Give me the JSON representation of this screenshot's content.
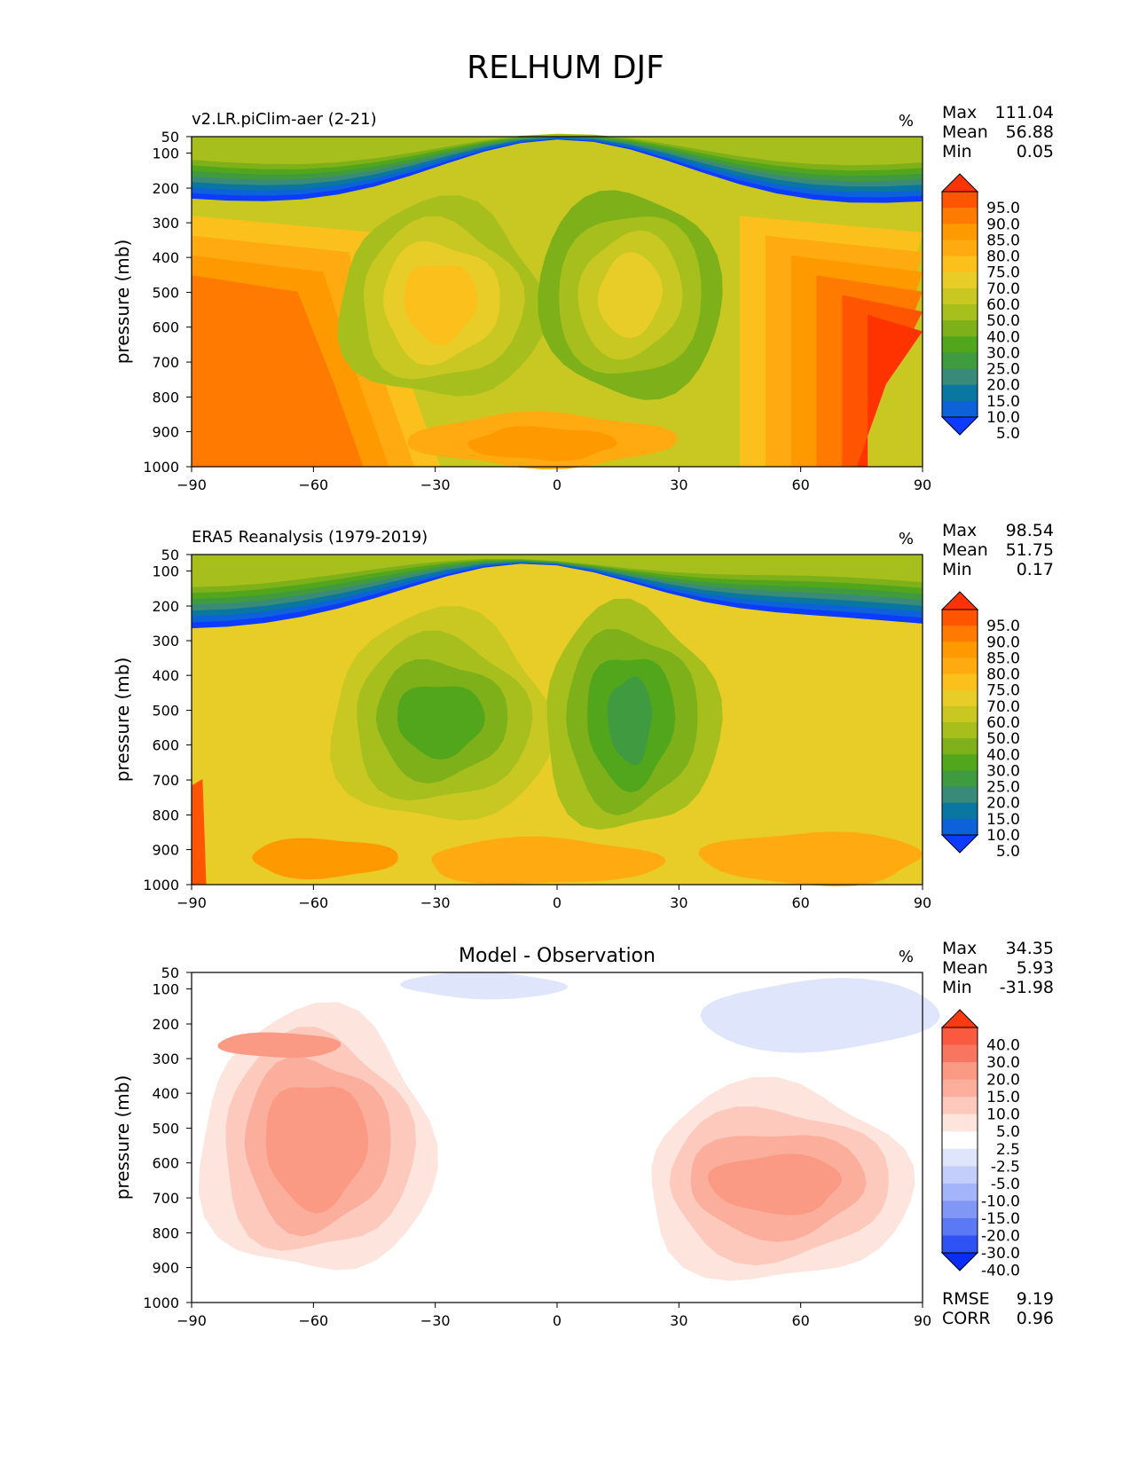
{
  "figure": {
    "title": "RELHUM DJF"
  },
  "chart_data": [
    {
      "type": "contour",
      "title": "v2.LR.piClim-aer (2-21)",
      "units": "%",
      "ylabel": "pressure (mb)",
      "xlim": [
        -90,
        90
      ],
      "ylim": [
        1000,
        50
      ],
      "xticks": [
        -90,
        -60,
        -30,
        0,
        30,
        60,
        90
      ],
      "yticks": [
        50,
        100,
        200,
        300,
        400,
        500,
        600,
        700,
        800,
        900,
        1000
      ],
      "stats": [
        {
          "label": "Max",
          "value": "111.04"
        },
        {
          "label": "Mean",
          "value": "56.88"
        },
        {
          "label": "Min",
          "value": "0.05"
        }
      ],
      "colorbar": {
        "levels": [
          "95.0",
          "90.0",
          "85.0",
          "80.0",
          "75.0",
          "70.0",
          "60.0",
          "50.0",
          "40.0",
          "30.0",
          "25.0",
          "20.0",
          "15.0",
          "10.0",
          "5.0"
        ],
        "colors": [
          "#ff3300",
          "#ff5500",
          "#ff7a00",
          "#ff9900",
          "#ffaa10",
          "#fcc01c",
          "#e8cc28",
          "#c9c722",
          "#a7bf1c",
          "#7db019",
          "#52a61c",
          "#3f9a40",
          "#3a8a7a",
          "#0a77a0",
          "#0d62d9",
          "#0d3bff"
        ]
      },
      "field": {
        "background_level": 7,
        "regions": [
          {
            "level": 0,
            "x": [
              -90,
              -60,
              -20,
              0,
              30,
              60,
              90
            ],
            "p": [
              50,
              100,
              190,
              200,
              190,
              100,
              50
            ]
          },
          {
            "level": 5,
            "x": [
              -90,
              -70,
              -50
            ],
            "p": [
              290,
              500,
              950
            ]
          },
          {
            "level": 12,
            "x": [
              10,
              20,
              28
            ],
            "p": [
              300,
              450,
              700
            ]
          }
        ]
      }
    },
    {
      "type": "contour",
      "title": "ERA5 Reanalysis (1979-2019)",
      "units": "%",
      "ylabel": "pressure (mb)",
      "xlim": [
        -90,
        90
      ],
      "ylim": [
        1000,
        50
      ],
      "xticks": [
        -90,
        -60,
        -30,
        0,
        30,
        60,
        90
      ],
      "yticks": [
        50,
        100,
        200,
        300,
        400,
        500,
        600,
        700,
        800,
        900,
        1000
      ],
      "stats": [
        {
          "label": "Max",
          "value": "98.54"
        },
        {
          "label": "Mean",
          "value": "51.75"
        },
        {
          "label": "Min",
          "value": "0.17"
        }
      ],
      "colorbar": {
        "levels": [
          "95.0",
          "90.0",
          "85.0",
          "80.0",
          "75.0",
          "70.0",
          "60.0",
          "50.0",
          "40.0",
          "30.0",
          "25.0",
          "20.0",
          "15.0",
          "10.0",
          "5.0"
        ],
        "colors": [
          "#ff3300",
          "#ff5500",
          "#ff7a00",
          "#ff9900",
          "#ffaa10",
          "#fcc01c",
          "#e8cc28",
          "#c9c722",
          "#a7bf1c",
          "#7db019",
          "#52a61c",
          "#3f9a40",
          "#3a8a7a",
          "#0a77a0",
          "#0d62d9",
          "#0d3bff"
        ]
      }
    },
    {
      "type": "contour",
      "title": "Model - Observation",
      "units": "%",
      "ylabel": "pressure (mb)",
      "xlim": [
        -90,
        90
      ],
      "ylim": [
        1000,
        50
      ],
      "xticks": [
        -90,
        -60,
        -30,
        0,
        30,
        60,
        90
      ],
      "yticks": [
        50,
        100,
        200,
        300,
        400,
        500,
        600,
        700,
        800,
        900,
        1000
      ],
      "stats": [
        {
          "label": "Max",
          "value": "34.35"
        },
        {
          "label": "Mean",
          "value": "5.93"
        },
        {
          "label": "Min",
          "value": "-31.98"
        }
      ],
      "colorbar": {
        "levels": [
          "40.0",
          "30.0",
          "20.0",
          "15.0",
          "10.0",
          "5.0",
          "2.5",
          "-2.5",
          "-5.0",
          "-10.0",
          "-15.0",
          "-20.0",
          "-30.0",
          "-40.0"
        ],
        "colors": [
          "#ff3a10",
          "#fa5a40",
          "#f87660",
          "#fb9a84",
          "#fcae9c",
          "#fcc9bc",
          "#fde4dc",
          "#ffffff",
          "#dfe6fc",
          "#c3cffa",
          "#a3b4f8",
          "#8097f6",
          "#5b78f5",
          "#2f52f4",
          "#0a2cf4"
        ]
      },
      "metrics": [
        {
          "label": "RMSE",
          "value": "9.19"
        },
        {
          "label": "CORR",
          "value": "0.96"
        }
      ]
    }
  ]
}
